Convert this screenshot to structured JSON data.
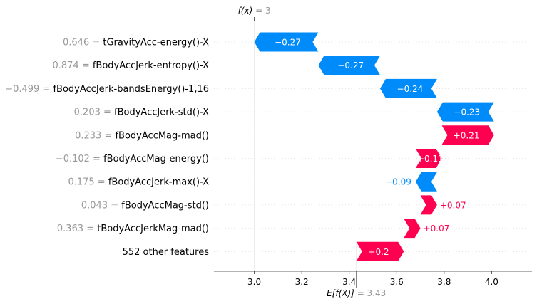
{
  "chart_data": {
    "type": "waterfall",
    "fx_label": "f(x)",
    "fx_value": "3",
    "base_label": "E[f(X)]",
    "base_value": "3.43",
    "base": 3.43,
    "fx": 3.0,
    "xlim": [
      2.83,
      4.17
    ],
    "ticks": [
      {
        "value": 3.0,
        "label": "3.0"
      },
      {
        "value": 3.2,
        "label": "3.2"
      },
      {
        "value": 3.4,
        "label": "3.4"
      },
      {
        "value": 3.6,
        "label": "3.6"
      },
      {
        "value": 3.8,
        "label": "3.8"
      },
      {
        "value": 4.0,
        "label": "4.0"
      }
    ],
    "rows": [
      {
        "name": "tGravityAcc-energy()-X",
        "value": "0.646",
        "start": 3.27,
        "end": 3.0,
        "label": "−0.27"
      },
      {
        "name": "fBodyAccJerk-entropy()-X",
        "value": "0.874",
        "start": 3.53,
        "end": 3.27,
        "label": "−0.27"
      },
      {
        "name": "fBodyAccJerk-bandsEnergy()-1,16",
        "value": "−0.499",
        "start": 3.77,
        "end": 3.53,
        "label": "−0.24"
      },
      {
        "name": "fBodyAccJerk-std()-X",
        "value": "0.203",
        "start": 4.01,
        "end": 3.77,
        "label": "−0.23"
      },
      {
        "name": "fBodyAccMag-mad()",
        "value": "0.233",
        "start": 3.79,
        "end": 4.01,
        "label": "+0.21"
      },
      {
        "name": "fBodyAccMag-energy()",
        "value": "−0.102",
        "start": 3.68,
        "end": 3.79,
        "label": "+0.11"
      },
      {
        "name": "fBodyAccJerk-max()-X",
        "value": "0.175",
        "start": 3.77,
        "end": 3.68,
        "label": "−0.09"
      },
      {
        "name": "fBodyAccMag-std()",
        "value": "0.043",
        "start": 3.7,
        "end": 3.77,
        "label": "+0.07"
      },
      {
        "name": "tBodyAccJerkMag-mad()",
        "value": "0.363",
        "start": 3.63,
        "end": 3.7,
        "label": "+0.07"
      },
      {
        "name": "552 other features",
        "value": "",
        "start": 3.43,
        "end": 3.63,
        "label": "+0.2"
      }
    ],
    "colors": {
      "positive": "#ff0051",
      "negative": "#008bfb"
    }
  }
}
